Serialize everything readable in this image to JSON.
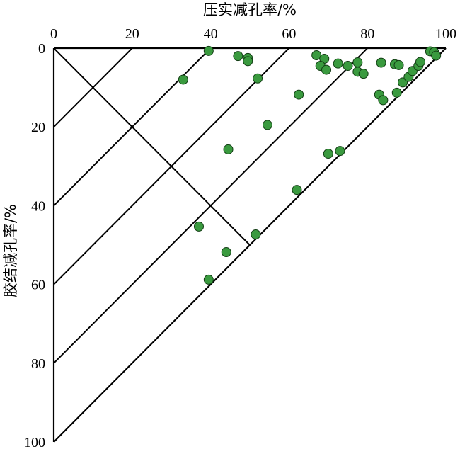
{
  "chart_data": {
    "type": "scatter",
    "title": "",
    "xlabel": "压实减孔率/%",
    "ylabel": "胶结减孔率/%",
    "xlim": [
      0,
      100
    ],
    "ylim": [
      0,
      100
    ],
    "x_ticks": [
      "0",
      "20",
      "40",
      "60",
      "80",
      "100"
    ],
    "y_ticks": [
      "0",
      "20",
      "40",
      "60",
      "80",
      "100"
    ],
    "grid": false,
    "guide_lines": {
      "sum_isolines": [
        20,
        40,
        60,
        80,
        100
      ],
      "diagonal_from": [
        0,
        0
      ],
      "diagonal_to": [
        50,
        50
      ]
    },
    "point_color": "#3a9a3f",
    "points": [
      {
        "x": 39.5,
        "y": 0.7
      },
      {
        "x": 47,
        "y": 2
      },
      {
        "x": 49.5,
        "y": 2.5
      },
      {
        "x": 49.5,
        "y": 3.3
      },
      {
        "x": 33,
        "y": 8
      },
      {
        "x": 52,
        "y": 7.7
      },
      {
        "x": 67,
        "y": 1.8
      },
      {
        "x": 69,
        "y": 2.7
      },
      {
        "x": 68,
        "y": 4.5
      },
      {
        "x": 69.5,
        "y": 5.5
      },
      {
        "x": 72.5,
        "y": 3.9
      },
      {
        "x": 75,
        "y": 4.5
      },
      {
        "x": 77.5,
        "y": 3.6
      },
      {
        "x": 77.5,
        "y": 6
      },
      {
        "x": 79,
        "y": 6.5
      },
      {
        "x": 83.5,
        "y": 3.7
      },
      {
        "x": 87,
        "y": 4.1
      },
      {
        "x": 88,
        "y": 4.3
      },
      {
        "x": 62.5,
        "y": 11.8
      },
      {
        "x": 83,
        "y": 11.8
      },
      {
        "x": 84,
        "y": 13.2
      },
      {
        "x": 87.5,
        "y": 11.3
      },
      {
        "x": 89,
        "y": 8.7
      },
      {
        "x": 90.5,
        "y": 7.3
      },
      {
        "x": 91.5,
        "y": 5.8
      },
      {
        "x": 93,
        "y": 4.5
      },
      {
        "x": 93.5,
        "y": 3.5
      },
      {
        "x": 96,
        "y": 0.8
      },
      {
        "x": 97,
        "y": 1
      },
      {
        "x": 97.5,
        "y": 1.9
      },
      {
        "x": 54.5,
        "y": 19.5
      },
      {
        "x": 44.5,
        "y": 25.7
      },
      {
        "x": 70,
        "y": 26.8
      },
      {
        "x": 73,
        "y": 26.1
      },
      {
        "x": 62,
        "y": 36
      },
      {
        "x": 37,
        "y": 45.3
      },
      {
        "x": 51.5,
        "y": 47.3
      },
      {
        "x": 44,
        "y": 51.8
      },
      {
        "x": 39.5,
        "y": 58.8
      }
    ]
  }
}
